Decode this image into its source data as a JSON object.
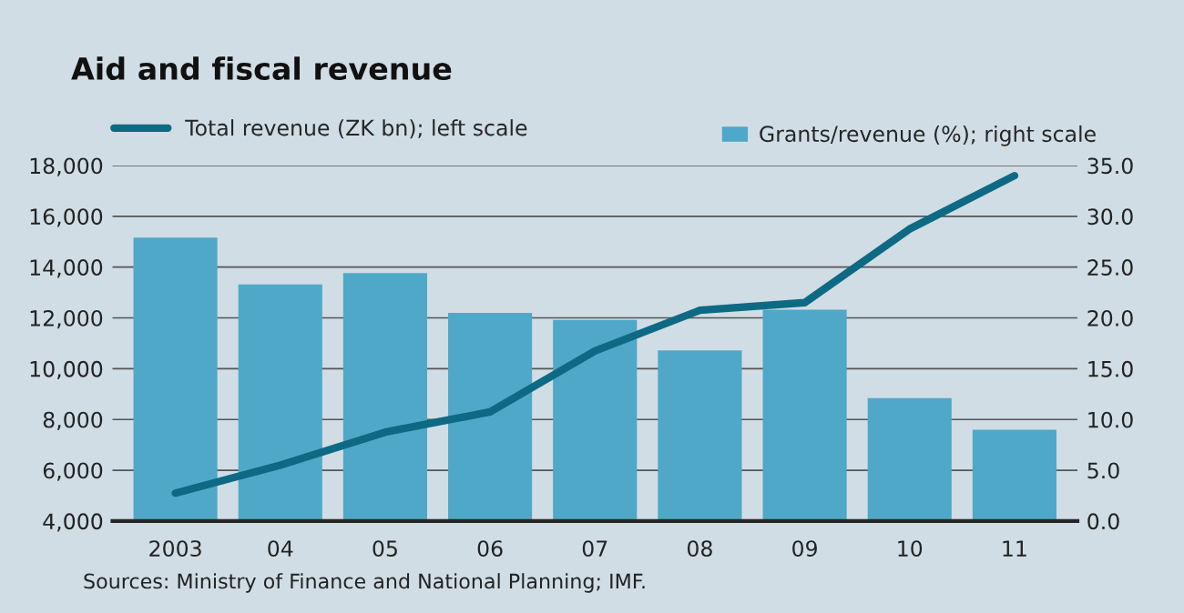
{
  "chart_data": {
    "type": "bar",
    "title": "Aid and fiscal revenue",
    "categories": [
      "2003",
      "04",
      "05",
      "06",
      "07",
      "08",
      "09",
      "10",
      "11"
    ],
    "series": [
      {
        "name": "Total revenue (ZK bn); left scale",
        "type": "line",
        "color": "#0e6a84",
        "values": [
          5100,
          6200,
          7500,
          8300,
          10700,
          12300,
          12600,
          15500,
          17600
        ]
      },
      {
        "name": "Grants/revenue (%); right scale",
        "axis": "y2",
        "color": "#4fa8c7",
        "values": [
          27.9,
          23.3,
          24.4,
          20.5,
          19.8,
          16.8,
          20.8,
          12.1,
          9.0
        ]
      }
    ],
    "ylim": [
      4000,
      18000
    ],
    "yticks": [
      {
        "value": 4000,
        "label": "4,000"
      },
      {
        "value": 6000,
        "label": "6,000"
      },
      {
        "value": 8000,
        "label": "8,000"
      },
      {
        "value": 10000,
        "label": "10,000"
      },
      {
        "value": 12000,
        "label": "12,000"
      },
      {
        "value": 14000,
        "label": "14,000"
      },
      {
        "value": 16000,
        "label": "16,000"
      },
      {
        "value": 18000,
        "label": "18,000"
      }
    ],
    "y2lim": [
      0,
      35
    ],
    "y2ticks": [
      {
        "value": 0,
        "label": "0.0"
      },
      {
        "value": 5,
        "label": "5.0"
      },
      {
        "value": 10,
        "label": "10.0"
      },
      {
        "value": 15,
        "label": "15.0"
      },
      {
        "value": 20,
        "label": "20.0"
      },
      {
        "value": 25,
        "label": "25.0"
      },
      {
        "value": 30,
        "label": "30.0"
      },
      {
        "value": 35,
        "label": "35.0"
      }
    ],
    "grid": "y",
    "legend": "top",
    "annotations": [
      "Sources: Ministry of Finance and National Planning; IMF."
    ]
  }
}
